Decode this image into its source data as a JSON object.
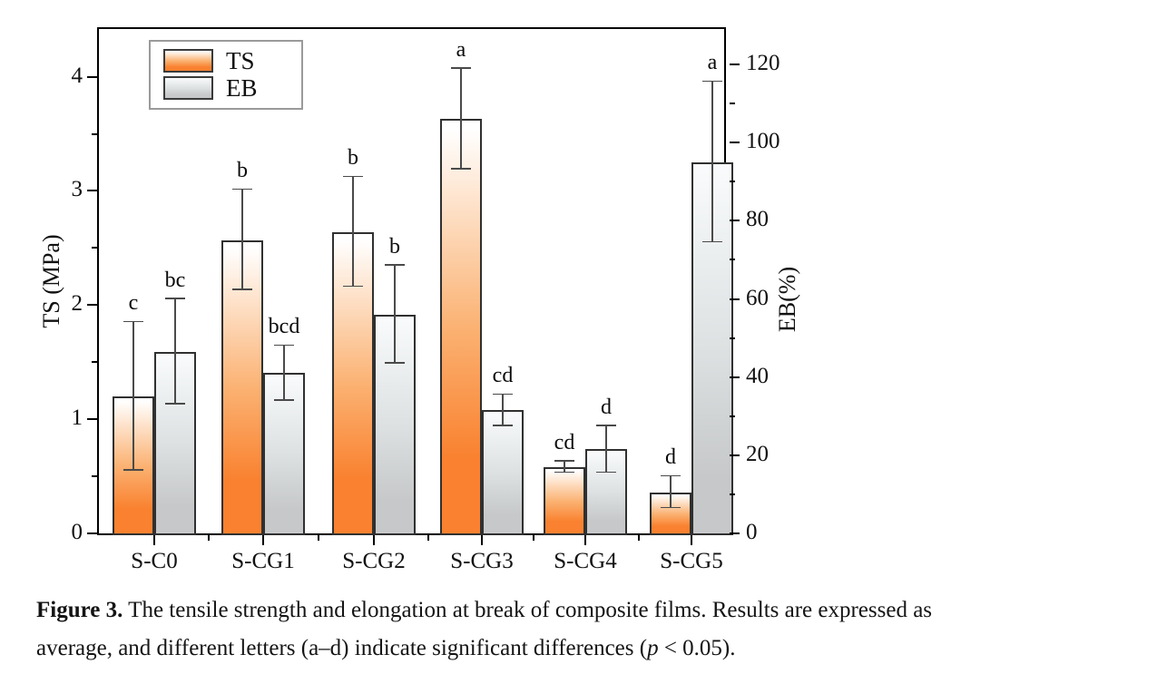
{
  "chart_data": {
    "type": "bar",
    "title": "",
    "categories": [
      "S-C0",
      "S-CG1",
      "S-CG2",
      "S-CG3",
      "S-CG4",
      "S-CG5"
    ],
    "series": [
      {
        "name": "TS",
        "axis": "left",
        "unit": "MPa",
        "values": [
          1.2,
          2.57,
          2.64,
          3.63,
          0.58,
          0.36
        ],
        "errors": [
          0.65,
          0.44,
          0.48,
          0.44,
          0.05,
          0.14
        ],
        "letters": [
          "c",
          "b",
          "b",
          "a",
          "cd",
          "d"
        ]
      },
      {
        "name": "EB",
        "axis": "right",
        "unit": "%",
        "values": [
          46.5,
          41,
          56,
          31.5,
          21.5,
          95
        ],
        "errors": [
          13.5,
          7,
          12.5,
          4,
          6,
          20.5
        ],
        "letters": [
          "bc",
          "bcd",
          "b",
          "cd",
          "d",
          "a"
        ]
      }
    ],
    "left_axis": {
      "label": "TS (MPa)",
      "ticks": [
        0,
        1,
        2,
        3,
        4
      ],
      "minor_ticks": [
        0.5,
        1.5,
        2.5,
        3.5
      ],
      "max": 4.45
    },
    "right_axis": {
      "label": "EB(%)",
      "ticks": [
        0,
        20,
        40,
        60,
        80,
        100,
        120
      ],
      "minor_ticks": [
        10,
        30,
        50,
        70,
        90,
        110
      ],
      "max": 130
    },
    "legend_position": "top-left",
    "grid": false,
    "colors": {
      "ts_bottom": "#f9812f",
      "ts_mid": "#fbb273",
      "ts_top": "#ffffff",
      "eb_bottom": "#c6c8c9",
      "eb_mid": "#dde1e2",
      "eb_top": "#f8fafb"
    }
  },
  "legend": {
    "ts_label": "TS",
    "eb_label": "EB"
  },
  "caption": {
    "line1_bold": "Figure 3.",
    "line1_rest": " The tensile strength and elongation at break of composite films. Results are expressed as",
    "line2_pre": "average, and different letters (a–d) indicate significant differences (",
    "line2_italic": "p",
    "line2_post": " < 0.05)."
  }
}
